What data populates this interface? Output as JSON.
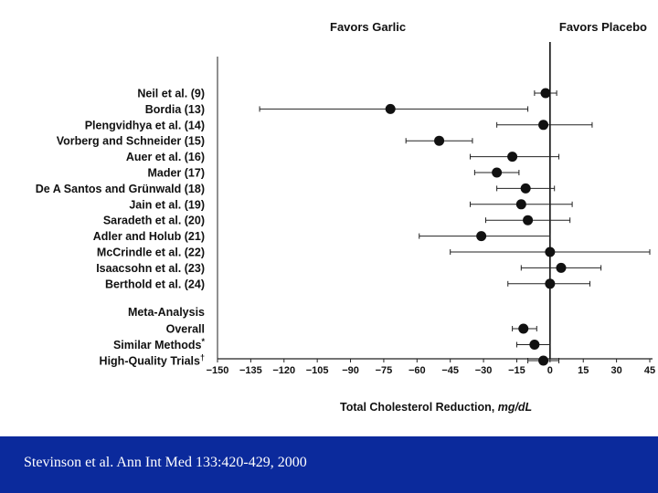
{
  "footer": {
    "citation": "Stevinson et al. Ann Int Med 133:420-429, 2000",
    "background": "#0b2a9c"
  },
  "chart_data": {
    "type": "scatter",
    "subtype": "forest-plot",
    "title": "",
    "header_left": "Favors Garlic",
    "header_right": "Favors Placebo",
    "xlabel": "Total Cholesterol Reduction,",
    "xlabel_unit": "mg/dL",
    "xlim": [
      -150,
      45
    ],
    "xticks": [
      -150,
      -135,
      -120,
      -105,
      -90,
      -75,
      -60,
      -45,
      -30,
      -15,
      0,
      15,
      30,
      45
    ],
    "xtick_labels": [
      "−150",
      "−135",
      "−120",
      "−105",
      "−90",
      "−75",
      "−60",
      "−45",
      "−30",
      "−15",
      "0",
      "15",
      "30",
      "45"
    ],
    "reference_line": 0,
    "studies": [
      {
        "label": "Neil et al. (9)",
        "estimate": -2,
        "low": -7,
        "high": 3
      },
      {
        "label": "Bordia (13)",
        "estimate": -72,
        "low": -131,
        "high": -10
      },
      {
        "label": "Plengvidhya et al. (14)",
        "estimate": -3,
        "low": -24,
        "high": 19
      },
      {
        "label": "Vorberg and Schneider (15)",
        "estimate": -50,
        "low": -65,
        "high": -35
      },
      {
        "label": "Auer et al. (16)",
        "estimate": -17,
        "low": -36,
        "high": 4
      },
      {
        "label": "Mader (17)",
        "estimate": -24,
        "low": -34,
        "high": -14
      },
      {
        "label": "De A Santos and Grünwald (18)",
        "estimate": -11,
        "low": -24,
        "high": 2
      },
      {
        "label": "Jain et al. (19)",
        "estimate": -13,
        "low": -36,
        "high": 10
      },
      {
        "label": "Saradeth et al. (20)",
        "estimate": -10,
        "low": -29,
        "high": 9
      },
      {
        "label": "Adler and Holub (21)",
        "estimate": -31,
        "low": -59,
        "high": 0
      },
      {
        "label": "McCrindle et al. (22)",
        "estimate": 0,
        "low": -45,
        "high": 45
      },
      {
        "label": "Isaacsohn et al. (23)",
        "estimate": 5,
        "low": -13,
        "high": 23
      },
      {
        "label": "Berthold et al. (24)",
        "estimate": 0,
        "low": -19,
        "high": 18
      }
    ],
    "meta_header": "Meta-Analysis",
    "meta": [
      {
        "label": "Overall",
        "estimate": -12,
        "low": -17,
        "high": -6
      },
      {
        "label": "Similar Methods",
        "marker": "*",
        "estimate": -7,
        "low": -15,
        "high": 0
      },
      {
        "label": "High-Quality Trials",
        "marker": "†",
        "estimate": -3,
        "low": -10,
        "high": 4
      }
    ]
  }
}
